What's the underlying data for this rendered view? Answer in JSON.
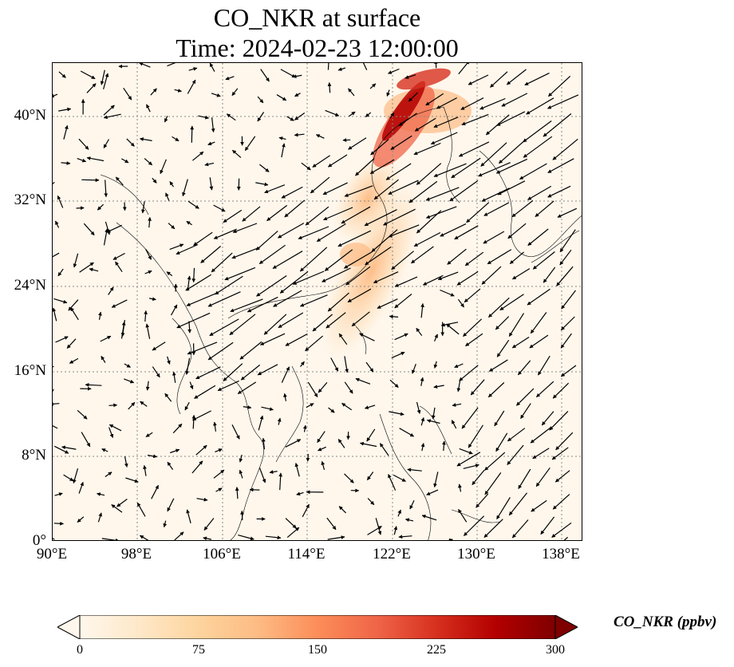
{
  "title": {
    "line1": "CO_NKR at surface",
    "line2": "Time: 2024-02-23 12:00:00"
  },
  "map": {
    "lon_range": [
      90,
      140
    ],
    "lat_range": [
      0,
      45
    ],
    "gridlines": "dotted",
    "lat_ticks": [
      "0°",
      "8°N",
      "16°N",
      "24°N",
      "32°N",
      "40°N"
    ],
    "lon_ticks": [
      "90°E",
      "98°E",
      "106°E",
      "114°E",
      "122°E",
      "130°E",
      "138°E"
    ],
    "background_color": "#fff7ec",
    "arrow_color": "#000000",
    "wind_field": "surface wind vectors",
    "plume_color_high": "#8b0000",
    "plume_color_mid": "#fc8d59"
  },
  "colorbar": {
    "label": "CO_NKR (ppbv)",
    "ticks": [
      "0",
      "75",
      "150",
      "225",
      "300"
    ],
    "range": [
      0,
      300
    ],
    "colormap": "OrRd",
    "colors": [
      "#fff7ec",
      "#fee8c8",
      "#fdd49e",
      "#fdbb84",
      "#fc8d59",
      "#ef6548",
      "#d7301f",
      "#b30000",
      "#7f0000"
    ]
  }
}
